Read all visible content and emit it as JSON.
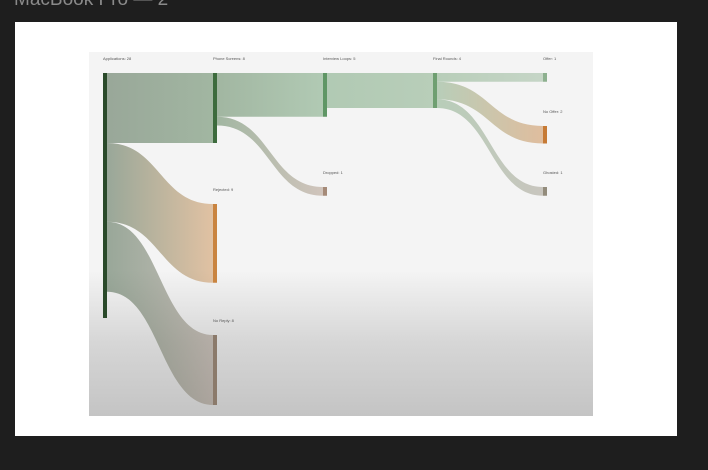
{
  "window": {
    "title": "MacBook Pro — 2"
  },
  "diagram": {
    "nodes": [
      {
        "id": "applications",
        "label": "Applications: 28",
        "value": 28,
        "color": "#2a4a2a"
      },
      {
        "id": "phone",
        "label": "Phone Screens: 8",
        "value": 8,
        "color": "#3d6b3d"
      },
      {
        "id": "interview",
        "label": "Interview Loops: 5",
        "value": 5,
        "color": "#5f9665"
      },
      {
        "id": "final",
        "label": "Final Rounds: 4",
        "value": 4,
        "color": "#6f9f71"
      },
      {
        "id": "offer",
        "label": "Offer: 1",
        "value": 1,
        "color": "#8db08f"
      },
      {
        "id": "rejected",
        "label": "Rejected: 9",
        "value": 9,
        "color": "#c98440"
      },
      {
        "id": "noreply",
        "label": "No Reply: 8",
        "value": 8,
        "color": "#8b7a6b"
      },
      {
        "id": "dropped",
        "label": "Dropped: 1",
        "value": 1,
        "color": "#a58a78"
      },
      {
        "id": "nooffer",
        "label": "No Offer: 2",
        "value": 2,
        "color": "#c67a35"
      },
      {
        "id": "ghosted",
        "label": "Ghosted: 1",
        "value": 1,
        "color": "#938c7c"
      }
    ],
    "links": [
      {
        "source": "applications",
        "target": "phone",
        "value": 8
      },
      {
        "source": "applications",
        "target": "rejected",
        "value": 9
      },
      {
        "source": "applications",
        "target": "noreply",
        "value": 8
      },
      {
        "source": "phone",
        "target": "interview",
        "value": 5
      },
      {
        "source": "phone",
        "target": "dropped",
        "value": 1
      },
      {
        "source": "interview",
        "target": "final",
        "value": 4
      },
      {
        "source": "final",
        "target": "offer",
        "value": 1
      },
      {
        "source": "final",
        "target": "nooffer",
        "value": 2
      },
      {
        "source": "final",
        "target": "ghosted",
        "value": 1
      }
    ]
  }
}
